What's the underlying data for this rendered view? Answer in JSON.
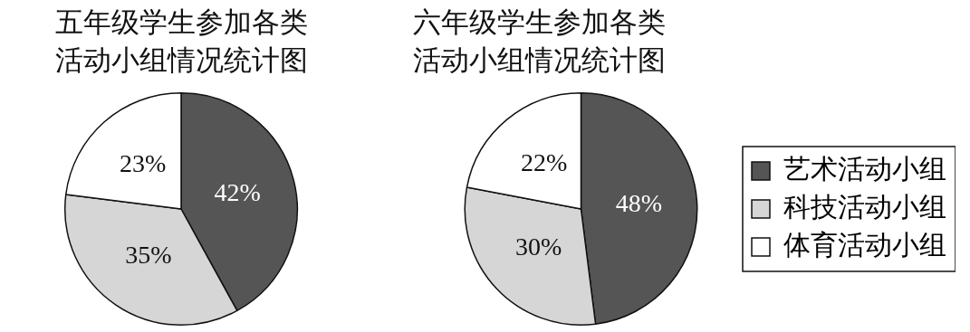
{
  "chart_data": [
    {
      "type": "pie",
      "title": "五年级学生参加各类活动小组情况统计图",
      "categories": [
        null,
        null,
        null
      ],
      "values": [
        42,
        35,
        23
      ],
      "value_labels": [
        "42%",
        "35%",
        "23%"
      ],
      "colors": [
        "#555555",
        "#d6d6d6",
        "#ffffff"
      ]
    },
    {
      "type": "pie",
      "title": "六年级学生参加各类活动小组情况统计图",
      "categories": [
        "艺术活动小组",
        "科技活动小组",
        "体育活动小组"
      ],
      "values": [
        48,
        30,
        22
      ],
      "value_labels": [
        "48%",
        "30%",
        "22%"
      ],
      "colors": [
        "#555555",
        "#d6d6d6",
        "#ffffff"
      ],
      "legend": "right"
    }
  ]
}
